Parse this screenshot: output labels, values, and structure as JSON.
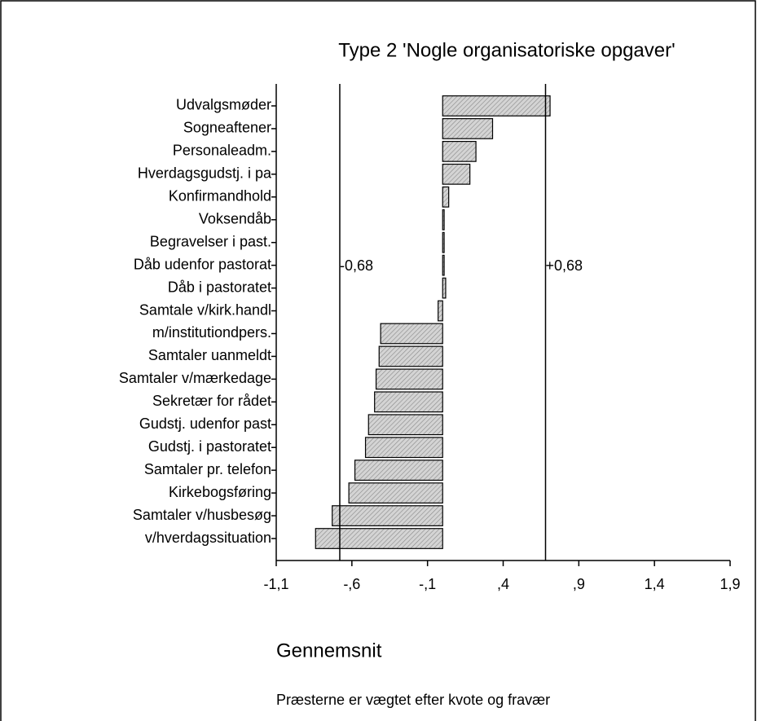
{
  "chart_data": {
    "type": "barh",
    "title": "Type 2 'Nogle organisatoriske opgaver'",
    "x_label": "Gennemsnit",
    "note": "Præsterne er vægtet efter kvote og fravær",
    "categories": [
      "Udvalgsmøder",
      "Sogneaftener",
      "Personaleadm.",
      "Hverdagsgudstj. i pa",
      "Konfirmandhold",
      "Voksendåb",
      "Begravelser i past.",
      "Dåb udenfor pastorat",
      "Dåb i pastoratet",
      "Samtale v/kirk.handl",
      "m/institutiondpers.",
      "Samtaler uanmeldt",
      "Samtaler v/mærkedage",
      "Sekretær for rådet",
      "Gudstj. udenfor past",
      "Gudstj. i pastoratet",
      "Samtaler pr. telefon",
      "Kirkebogsføring",
      "Samtaler v/husbesøg",
      "v/hverdagssituation"
    ],
    "values": [
      0.71,
      0.33,
      0.22,
      0.18,
      0.04,
      0.01,
      0.01,
      0.01,
      0.02,
      -0.03,
      -0.41,
      -0.42,
      -0.44,
      -0.45,
      -0.49,
      -0.51,
      -0.58,
      -0.62,
      -0.73,
      -0.84
    ],
    "color": "#d4d4d4",
    "xlim": [
      -1.1,
      1.9
    ],
    "xticks": [
      {
        "value": -1.1,
        "label": "-1,1"
      },
      {
        "value": -0.6,
        "label": "-,6"
      },
      {
        "value": -0.1,
        "label": "-,1"
      },
      {
        "value": 0.4,
        "label": ",4"
      },
      {
        "value": 0.9,
        "label": ",9"
      },
      {
        "value": 1.4,
        "label": "1,4"
      },
      {
        "value": 1.9,
        "label": "1,9"
      }
    ],
    "reference_lines": [
      {
        "value": -0.68,
        "label": "-0,68"
      },
      {
        "value": 0.68,
        "label": "+0,68"
      }
    ]
  }
}
